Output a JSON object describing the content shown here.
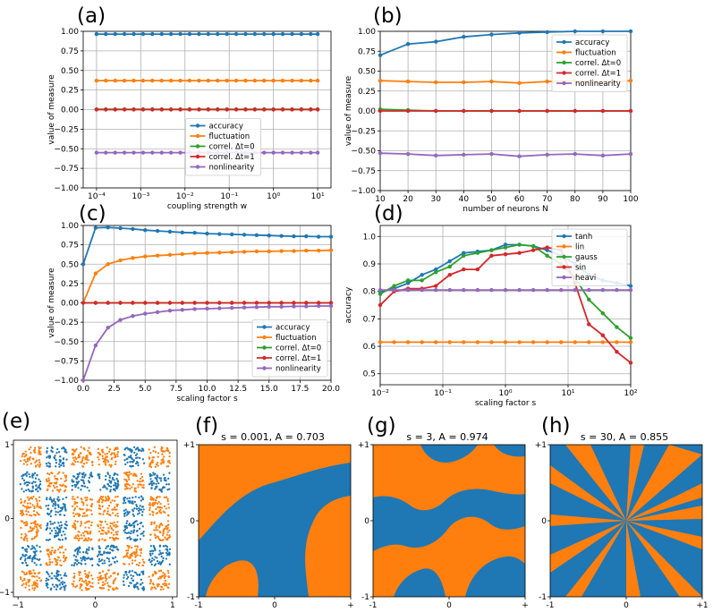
{
  "colors": {
    "blue": "#1f77b4",
    "orange": "#ff7f0e",
    "green": "#2ca02c",
    "red": "#d62728",
    "purple": "#9467bd"
  },
  "panels": {
    "a": {
      "label": "(a)"
    },
    "b": {
      "label": "(b)"
    },
    "c": {
      "label": "(c)"
    },
    "d": {
      "label": "(d)"
    },
    "e": {
      "label": "(e)"
    },
    "f": {
      "label": "(f)",
      "title": "s = 0.001, A = 0.703"
    },
    "g": {
      "label": "(g)",
      "title": "s = 3, A = 0.974"
    },
    "h": {
      "label": "(h)",
      "title": "s = 30, A = 0.855"
    }
  },
  "chart_data": [
    {
      "id": "a",
      "type": "line",
      "xscale": "log",
      "xlim": [
        5e-05,
        20
      ],
      "ylim": [
        -1,
        1
      ],
      "xticks": [
        0.0001,
        0.001,
        0.01,
        0.1,
        1,
        10
      ],
      "xtick_labels": [
        "10⁻⁴",
        "10⁻³",
        "10⁻²",
        "10⁻¹",
        "10⁰",
        "10¹"
      ],
      "yticks": [
        -1,
        -0.75,
        -0.5,
        -0.25,
        0,
        0.25,
        0.5,
        0.75,
        1
      ],
      "ytick_labels": [
        "−1.00",
        "−0.75",
        "−0.50",
        "−0.25",
        "0.00",
        "0.25",
        "0.50",
        "0.75",
        "1.00"
      ],
      "xlabel": "coupling strength w",
      "ylabel": "value of measure",
      "legend": "lower-center",
      "x": [
        0.0001,
        0.000162,
        0.000264,
        0.000428,
        0.000695,
        0.00113,
        0.00183,
        0.00298,
        0.00483,
        0.00785,
        0.0127,
        0.0207,
        0.0336,
        0.0546,
        0.0886,
        0.144,
        0.234,
        0.379,
        0.616,
        1,
        1.62,
        2.64,
        4.28,
        6.95,
        10
      ],
      "series": [
        {
          "name": "accuracy",
          "color": "blue",
          "const": 0.965
        },
        {
          "name": "fluctuation",
          "color": "orange",
          "const": 0.37
        },
        {
          "name": "correl. Δt=0",
          "color": "green",
          "const": 0.005
        },
        {
          "name": "correl. Δt=1",
          "color": "red",
          "const": 0.0
        },
        {
          "name": "nonlinearity",
          "color": "purple",
          "const": -0.55
        }
      ]
    },
    {
      "id": "b",
      "type": "line",
      "xlim": [
        10,
        100
      ],
      "ylim": [
        -1,
        1
      ],
      "xticks": [
        10,
        20,
        30,
        40,
        50,
        60,
        70,
        80,
        90,
        100
      ],
      "xtick_labels": [
        "10",
        "20",
        "30",
        "40",
        "50",
        "60",
        "70",
        "80",
        "90",
        "100"
      ],
      "yticks": [
        -1,
        -0.75,
        -0.5,
        -0.25,
        0,
        0.25,
        0.5,
        0.75,
        1
      ],
      "ytick_labels": [
        "−1.00",
        "−0.75",
        "−0.50",
        "−0.25",
        "0.00",
        "0.25",
        "0.50",
        "0.75",
        "1.00"
      ],
      "xlabel": "number of neurons N",
      "ylabel": "value of measure",
      "legend": "upper-right",
      "x": [
        10,
        20,
        30,
        40,
        50,
        60,
        70,
        80,
        90,
        100
      ],
      "series": [
        {
          "name": "accuracy",
          "color": "blue",
          "values": [
            0.7,
            0.84,
            0.87,
            0.93,
            0.96,
            0.98,
            0.99,
            1.0,
            1.0,
            1.0
          ]
        },
        {
          "name": "fluctuation",
          "color": "orange",
          "values": [
            0.38,
            0.37,
            0.36,
            0.36,
            0.37,
            0.35,
            0.37,
            0.38,
            0.36,
            0.38
          ]
        },
        {
          "name": "correl. Δt=0",
          "color": "green",
          "values": [
            0.02,
            0.01,
            0.0,
            0.0,
            0.0,
            0.0,
            0.0,
            0.0,
            0.0,
            0.0
          ]
        },
        {
          "name": "correl. Δt=1",
          "color": "red",
          "values": [
            0.0,
            0.0,
            0.0,
            0.0,
            0.0,
            0.0,
            0.0,
            0.0,
            0.0,
            0.0
          ]
        },
        {
          "name": "nonlinearity",
          "color": "purple",
          "values": [
            -0.53,
            -0.54,
            -0.56,
            -0.55,
            -0.54,
            -0.57,
            -0.55,
            -0.54,
            -0.56,
            -0.54
          ]
        }
      ]
    },
    {
      "id": "c",
      "type": "line",
      "xlim": [
        0,
        20
      ],
      "ylim": [
        -1,
        1
      ],
      "xticks": [
        0,
        2.5,
        5,
        7.5,
        10,
        12.5,
        15,
        17.5,
        20
      ],
      "xtick_labels": [
        "0.0",
        "2.5",
        "5.0",
        "7.5",
        "10.0",
        "12.5",
        "15.0",
        "17.5",
        "20.0"
      ],
      "yticks": [
        -1,
        -0.75,
        -0.5,
        -0.25,
        0,
        0.25,
        0.5,
        0.75,
        1
      ],
      "ytick_labels": [
        "−1.00",
        "−0.75",
        "−0.50",
        "−0.25",
        "0.00",
        "0.25",
        "0.50",
        "0.75",
        "1.00"
      ],
      "xlabel": "scaling factor s",
      "ylabel": "value of measure",
      "legend": "lower-right",
      "x": [
        0,
        1,
        2,
        3,
        4,
        5,
        6,
        7,
        8,
        9,
        10,
        11,
        12,
        13,
        14,
        15,
        16,
        17,
        18,
        19,
        20
      ],
      "series": [
        {
          "name": "accuracy",
          "color": "blue",
          "values": [
            0.5,
            0.97,
            0.975,
            0.965,
            0.955,
            0.94,
            0.93,
            0.92,
            0.91,
            0.905,
            0.895,
            0.89,
            0.885,
            0.88,
            0.875,
            0.87,
            0.865,
            0.86,
            0.86,
            0.855,
            0.855
          ]
        },
        {
          "name": "fluctuation",
          "color": "orange",
          "values": [
            0.0,
            0.38,
            0.5,
            0.55,
            0.58,
            0.6,
            0.61,
            0.62,
            0.63,
            0.64,
            0.645,
            0.65,
            0.655,
            0.66,
            0.665,
            0.665,
            0.67,
            0.67,
            0.675,
            0.675,
            0.68
          ]
        },
        {
          "name": "correl. Δt=0",
          "color": "green",
          "values": [
            0,
            0,
            0,
            0,
            0,
            0,
            0,
            0,
            0,
            0,
            0,
            0,
            0,
            0,
            0,
            0,
            0,
            0,
            0,
            0,
            0
          ]
        },
        {
          "name": "correl. Δt=1",
          "color": "red",
          "values": [
            0,
            0,
            0,
            0,
            0,
            0,
            0,
            0,
            0,
            0,
            0,
            0,
            0,
            0,
            0,
            0,
            0,
            0,
            0,
            0,
            0
          ]
        },
        {
          "name": "nonlinearity",
          "color": "purple",
          "values": [
            -1.0,
            -0.55,
            -0.32,
            -0.22,
            -0.17,
            -0.14,
            -0.12,
            -0.1,
            -0.09,
            -0.08,
            -0.075,
            -0.07,
            -0.065,
            -0.06,
            -0.055,
            -0.05,
            -0.05,
            -0.045,
            -0.045,
            -0.04,
            -0.04
          ]
        }
      ]
    },
    {
      "id": "d",
      "type": "line",
      "xscale": "log",
      "xlim": [
        0.01,
        100
      ],
      "ylim": [
        0.46,
        1.04
      ],
      "xticks": [
        0.01,
        0.1,
        1,
        10,
        100
      ],
      "xtick_labels": [
        "10⁻²",
        "10⁻¹",
        "10⁰",
        "10¹",
        "10²"
      ],
      "yticks": [
        0.5,
        0.6,
        0.7,
        0.8,
        0.9,
        1.0
      ],
      "ytick_labels": [
        "0.5",
        "0.6",
        "0.7",
        "0.8",
        "0.9",
        "1.0"
      ],
      "xlabel": "scaling factor s",
      "ylabel": "accuracy",
      "legend": "upper-right",
      "x": [
        0.01,
        0.0167,
        0.0278,
        0.0464,
        0.0774,
        0.129,
        0.215,
        0.359,
        0.599,
        1.0,
        1.67,
        2.78,
        4.64,
        7.74,
        12.9,
        21.5,
        35.9,
        59.9,
        100
      ],
      "series": [
        {
          "name": "tanh",
          "color": "blue",
          "values": [
            0.8,
            0.81,
            0.83,
            0.86,
            0.88,
            0.91,
            0.94,
            0.945,
            0.95,
            0.97,
            0.97,
            0.965,
            0.95,
            0.93,
            0.9,
            0.86,
            0.84,
            0.83,
            0.82
          ]
        },
        {
          "name": "lin",
          "color": "orange",
          "const": 0.615
        },
        {
          "name": "gauss",
          "color": "green",
          "values": [
            0.79,
            0.82,
            0.84,
            0.84,
            0.87,
            0.89,
            0.93,
            0.94,
            0.95,
            0.96,
            0.97,
            0.965,
            0.93,
            0.9,
            0.85,
            0.77,
            0.72,
            0.67,
            0.63
          ]
        },
        {
          "name": "sin",
          "color": "red",
          "values": [
            0.75,
            0.8,
            0.81,
            0.81,
            0.82,
            0.86,
            0.88,
            0.88,
            0.93,
            0.935,
            0.94,
            0.95,
            0.96,
            0.95,
            0.83,
            0.68,
            0.64,
            0.58,
            0.54
          ]
        },
        {
          "name": "heavi",
          "color": "purple",
          "const": 0.805
        }
      ]
    }
  ],
  "scatter_e": {
    "xtick_labels": [
      "−1",
      "0",
      "1"
    ],
    "ytick_labels": [
      "−1",
      "0",
      "1"
    ]
  },
  "maps": {
    "xtick_labels": [
      "-1",
      "0",
      "+"
    ],
    "xtick_labels_h": [
      "-1",
      "0",
      "+1"
    ],
    "ytick_labels": [
      "-1",
      "0",
      "+1"
    ]
  }
}
